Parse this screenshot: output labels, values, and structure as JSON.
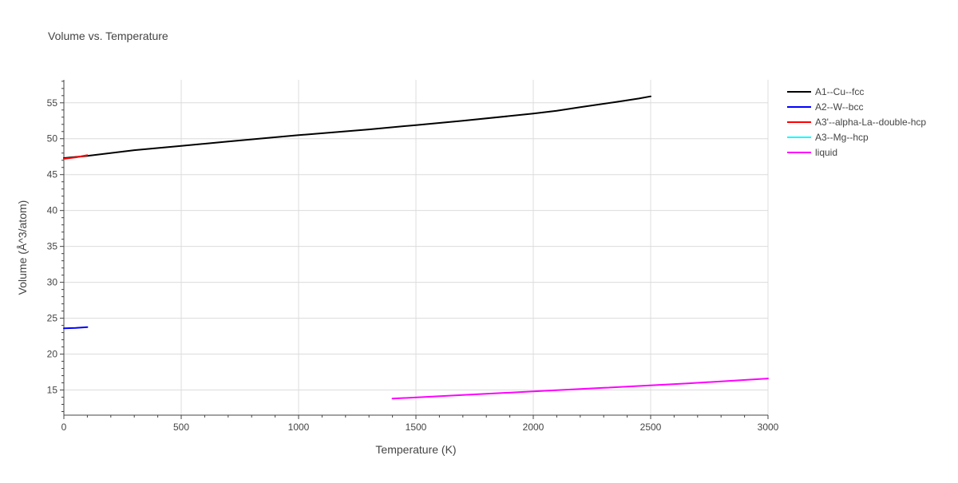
{
  "chart_data": {
    "type": "line",
    "title": "Volume vs. Temperature",
    "xlabel": "Temperature (K)",
    "ylabel": "Volume (Å^3/atom)",
    "xlim": [
      0,
      3000
    ],
    "ylim": [
      11.5,
      58.2
    ],
    "xticks": [
      0,
      500,
      1000,
      1500,
      2000,
      2500,
      3000
    ],
    "yticks": [
      15,
      20,
      25,
      30,
      35,
      40,
      45,
      50,
      55
    ],
    "grid": true,
    "legend_position": "top-right",
    "series": [
      {
        "name": "A1--Cu--fcc",
        "color": "#000000",
        "x": [
          0,
          100,
          300,
          500,
          700,
          1000,
          1300,
          1500,
          1700,
          2000,
          2100,
          2200,
          2350,
          2450,
          2500
        ],
        "y": [
          47.3,
          47.6,
          48.4,
          49.0,
          49.6,
          50.5,
          51.3,
          51.9,
          52.5,
          53.5,
          53.9,
          54.4,
          55.1,
          55.6,
          55.9
        ]
      },
      {
        "name": "A2--W--bcc",
        "color": "#0000ff",
        "x": [
          0,
          50,
          100
        ],
        "y": [
          23.6,
          23.65,
          23.75
        ]
      },
      {
        "name": "A3'--alpha-La--double-hcp",
        "color": "#ff0000",
        "x": [
          0,
          50,
          100
        ],
        "y": [
          47.2,
          47.4,
          47.7
        ]
      },
      {
        "name": "A3--Mg--hcp",
        "color": "#00ffff",
        "x": [],
        "y": []
      },
      {
        "name": "liquid",
        "color": "#ff00ff",
        "x": [
          1400,
          1700,
          2000,
          2300,
          2650,
          3000
        ],
        "y": [
          13.8,
          14.3,
          14.8,
          15.3,
          15.9,
          16.6
        ]
      }
    ]
  }
}
